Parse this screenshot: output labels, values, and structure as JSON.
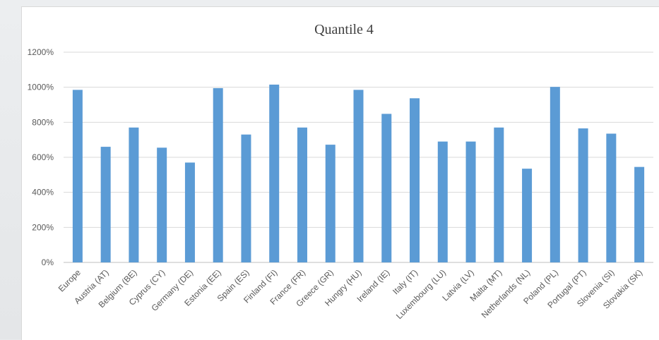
{
  "chart_data": {
    "type": "bar",
    "title": "Quantile 4",
    "categories": [
      "Europe",
      "Austria (AT)",
      "Belgium (BE)",
      "Cyprus (CY)",
      "Germany (DE)",
      "Estonia (EE)",
      "Spain (ES)",
      "Finland (FI)",
      "France (FR)",
      "Greece (GR)",
      "Hungry (HU)",
      "Ireland (IE)",
      "Italy (IT)",
      "Luxembourg (LU)",
      "Latvia (LV)",
      "Malta (MT)",
      "Netherlands (NL)",
      "Poland (PL)",
      "Portugal (PT)",
      "Slovenia (SI)",
      "Slovakia (SK)"
    ],
    "values": [
      985,
      660,
      770,
      655,
      570,
      995,
      730,
      1015,
      770,
      672,
      985,
      848,
      937,
      690,
      690,
      770,
      535,
      1002,
      765,
      735,
      545
    ],
    "ylim": [
      0,
      1200
    ],
    "yticks": [
      0,
      200,
      400,
      600,
      800,
      1000,
      1200
    ],
    "ytick_labels": [
      "0%",
      "200%",
      "400%",
      "600%",
      "800%",
      "1000%",
      "1200%"
    ],
    "xlabel": "",
    "ylabel": "",
    "grid": true,
    "bar_color": "#5b9bd5"
  }
}
